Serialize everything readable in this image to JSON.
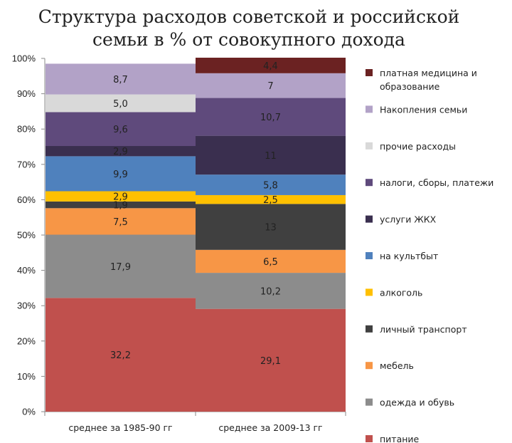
{
  "chart_data": {
    "type": "bar",
    "stacked": true,
    "title_lines": [
      "Структура расходов советской и российской",
      "семьи в % от совокупного дохода"
    ],
    "ylim": [
      0,
      100
    ],
    "y_ticks": [
      "0%",
      "10%",
      "20%",
      "30%",
      "40%",
      "50%",
      "60%",
      "70%",
      "80%",
      "90%",
      "100%"
    ],
    "categories": [
      "среднее за 1985-90 гг",
      "среднее за 2009-13 гг"
    ],
    "series": [
      {
        "name": "питание",
        "color": "#c0504d",
        "values": [
          32.2,
          29.1
        ],
        "labels": [
          "32,2",
          "29,1"
        ]
      },
      {
        "name": "одежда и обувь",
        "color": "#8c8c8c",
        "values": [
          17.9,
          10.2
        ],
        "labels": [
          "17,9",
          "10,2"
        ]
      },
      {
        "name": "мебель",
        "color": "#f79646",
        "values": [
          7.5,
          6.5
        ],
        "labels": [
          "7,5",
          "6,5"
        ]
      },
      {
        "name": "личный транспорт",
        "color": "#404040",
        "values": [
          1.9,
          13
        ],
        "labels": [
          "1,9",
          "13"
        ]
      },
      {
        "name": "алкоголь",
        "color": "#ffc000",
        "values": [
          2.9,
          2.5
        ],
        "labels": [
          "2,9",
          "2,5"
        ]
      },
      {
        "name": "на культбыт",
        "color": "#4f81bd",
        "values": [
          9.9,
          5.8
        ],
        "labels": [
          "9,9",
          "5,8"
        ]
      },
      {
        "name": "услуги ЖКХ",
        "color": "#3a2f4f",
        "values": [
          2.9,
          11
        ],
        "labels": [
          "2,9",
          "11"
        ]
      },
      {
        "name": "налоги, сборы, платежи",
        "color": "#5f4a7c",
        "values": [
          9.6,
          10.7
        ],
        "labels": [
          "9,6",
          "10,7"
        ]
      },
      {
        "name": "прочие расходы",
        "color": "#d9d9d9",
        "values": [
          5.0,
          0
        ],
        "labels": [
          "5,0",
          ""
        ]
      },
      {
        "name": "Накопления семьи",
        "color": "#b2a2c7",
        "values": [
          8.7,
          7
        ],
        "labels": [
          "8,7",
          "7"
        ]
      },
      {
        "name": "платная медицина и образование",
        "color": "#6b2222",
        "values": [
          0,
          4.4
        ],
        "labels": [
          "",
          "4,4"
        ]
      }
    ],
    "legend": [
      {
        "series": 10,
        "lines": [
          "платная медицина и",
          "образование"
        ]
      },
      {
        "series": 9,
        "lines": [
          "Накопления семьи"
        ]
      },
      {
        "series": 8,
        "lines": [
          "прочие расходы"
        ]
      },
      {
        "series": 7,
        "lines": [
          "налоги, сборы, платежи"
        ]
      },
      {
        "series": 6,
        "lines": [
          "услуги ЖКХ"
        ]
      },
      {
        "series": 5,
        "lines": [
          "на культбыт"
        ]
      },
      {
        "series": 4,
        "lines": [
          "алкоголь"
        ]
      },
      {
        "series": 3,
        "lines": [
          "личный транспорт"
        ]
      },
      {
        "series": 2,
        "lines": [
          "мебель"
        ]
      },
      {
        "series": 1,
        "lines": [
          "одежда и обувь"
        ]
      },
      {
        "series": 0,
        "lines": [
          "питание"
        ]
      }
    ],
    "legend_position": "right"
  }
}
